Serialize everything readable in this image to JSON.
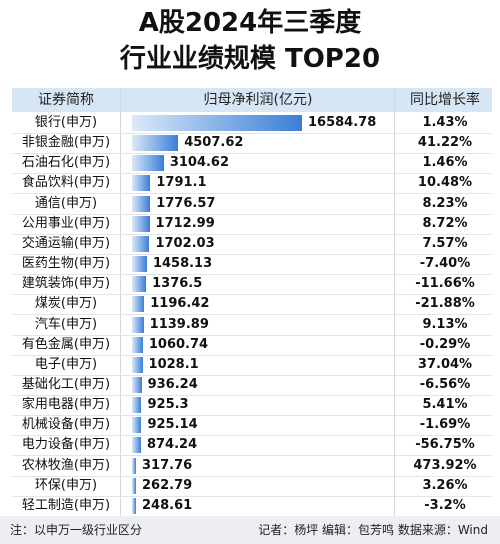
{
  "title_line1": "A股2024年三季度",
  "title_line2": "行业业绩规模 TOP20",
  "headers": {
    "name": "证券简称",
    "profit": "归母净利润(亿元)",
    "growth": "同比增长率"
  },
  "footer": {
    "note": "注：以申万一级行业区分",
    "credit": "记者：杨坪    编辑：包芳鸣    数据来源：Wind"
  },
  "colors": {
    "bar_start": "#dbe8f8",
    "bar_end": "#3b7ed6",
    "header_bg": "#d7e6f5"
  },
  "chart_data": {
    "type": "bar",
    "orientation": "horizontal",
    "title": "A股2024年三季度 行业业绩规模 TOP20",
    "xlabel": "归母净利润(亿元)",
    "ylabel": "证券简称",
    "grid": false,
    "categories": [
      "银行(申万)",
      "非银金融(申万)",
      "石油石化(申万)",
      "食品饮料(申万)",
      "通信(申万)",
      "公用事业(申万)",
      "交通运输(申万)",
      "医药生物(申万)",
      "建筑装饰(申万)",
      "煤炭(申万)",
      "汽车(申万)",
      "有色金属(申万)",
      "电子(申万)",
      "基础化工(申万)",
      "家用电器(申万)",
      "机械设备(申万)",
      "电力设备(申万)",
      "农林牧渔(申万)",
      "环保(申万)",
      "轻工制造(申万)"
    ],
    "values": [
      "16584.78",
      "4507.62",
      "3104.62",
      "1791.1",
      "1776.57",
      "1712.99",
      "1702.03",
      "1458.13",
      "1376.5",
      "1196.42",
      "1139.89",
      "1060.74",
      "1028.1",
      "936.24",
      "925.3",
      "925.14",
      "874.24",
      "317.76",
      "262.79",
      "248.61"
    ],
    "growth": [
      "1.43%",
      "41.22%",
      "1.46%",
      "10.48%",
      "8.23%",
      "8.72%",
      "7.57%",
      "-7.40%",
      "-11.66%",
      "-21.88%",
      "9.13%",
      "-0.29%",
      "37.04%",
      "-6.56%",
      "5.41%",
      "-1.69%",
      "-56.75%",
      "473.92%",
      "3.26%",
      "-3.2%"
    ]
  }
}
